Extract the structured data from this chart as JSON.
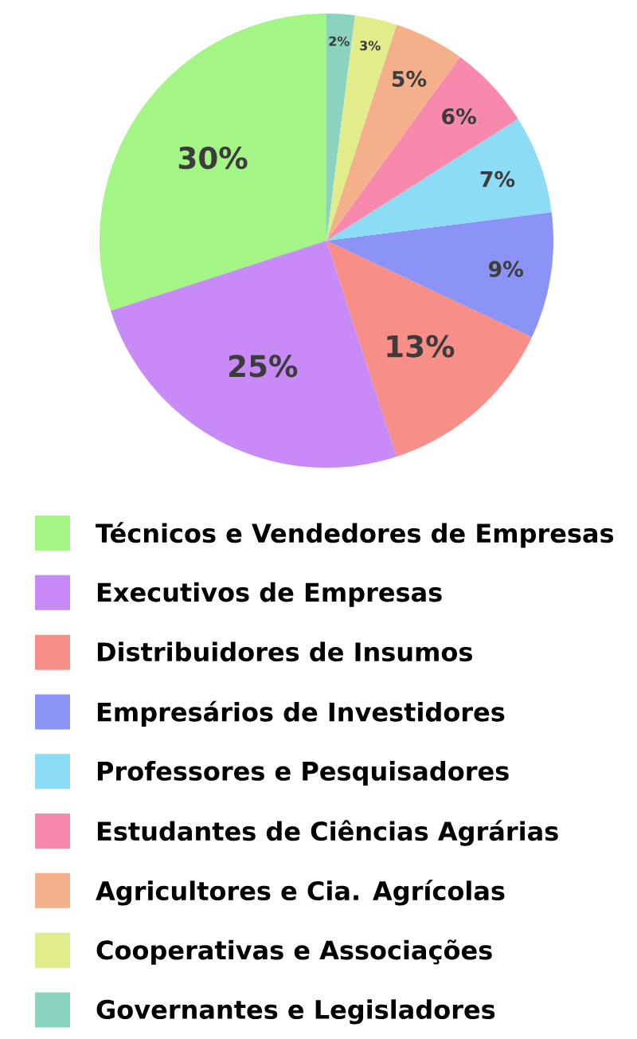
{
  "chart_data": {
    "type": "pie",
    "categories": [
      "Técnicos e Vendedores de Empresas",
      "Executivos de Empresas",
      "Distribuidores de Insumos",
      "Empresários de Investidores",
      "Professores e Pesquisadores",
      "Estudantes de Ciências Agrárias",
      "Agricultores e Cia. Agrícolas",
      "Cooperativas e Associações",
      "Governantes e Legisladores"
    ],
    "values": [
      30,
      25,
      13,
      9,
      7,
      6,
      5,
      3,
      2
    ],
    "colors": [
      "#a3f585",
      "#c88af7",
      "#f78f88",
      "#8c93f7",
      "#8cdcf5",
      "#f78aac",
      "#f3b08a",
      "#e3ec8a",
      "#8ad4bf"
    ],
    "value_labels": [
      "30%",
      "25%",
      "13%",
      "9%",
      "7%",
      "6%",
      "5%",
      "3%",
      "2%"
    ],
    "legend": "bottom"
  }
}
